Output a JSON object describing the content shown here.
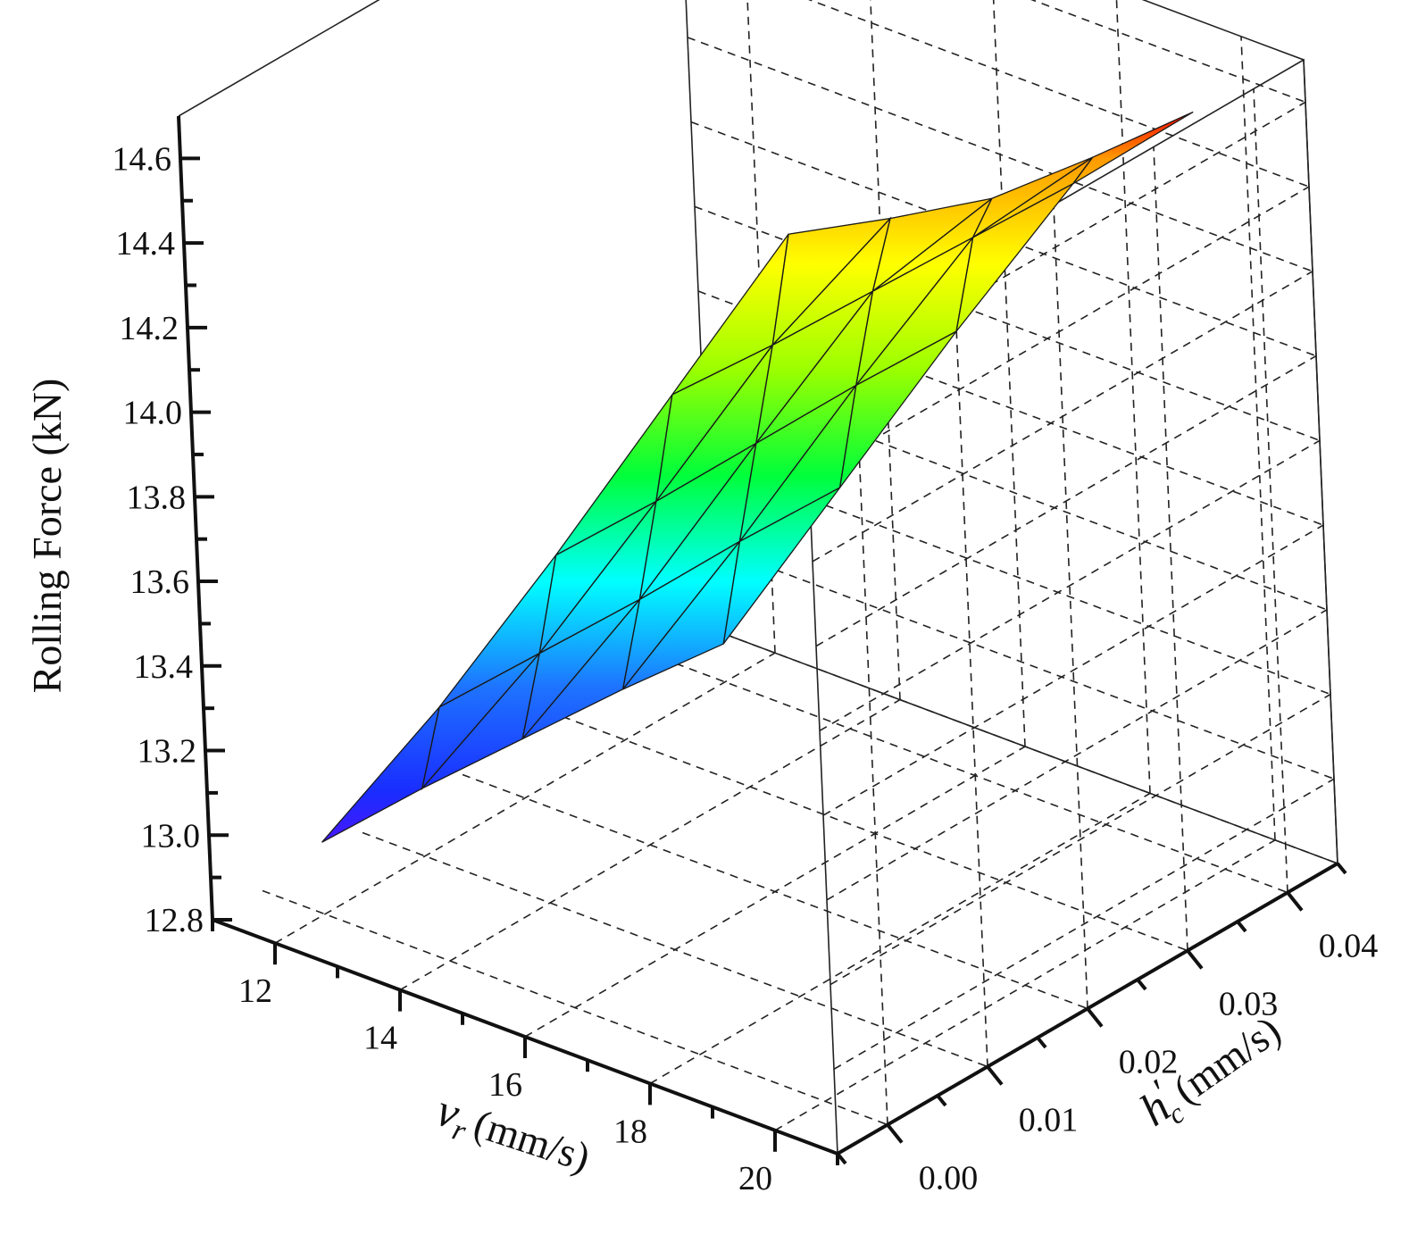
{
  "chart_data": {
    "type": "surface3d",
    "zlabel": "Rolling Force (kN)",
    "xlabel": "v_r (mm/s)",
    "ylabel": "h'_c (mm/s)",
    "xlabel_parts": {
      "symbol": "v",
      "subscript": "r",
      "unit": "(mm/s)"
    },
    "ylabel_parts": {
      "symbol": "h",
      "prime": "′",
      "subscript": "c",
      "unit": "(mm/s)"
    },
    "x_ticks": [
      "12",
      "14",
      "16",
      "18",
      "20"
    ],
    "y_ticks": [
      "0.00",
      "0.01",
      "0.02",
      "0.03",
      "0.04"
    ],
    "z_ticks": [
      "12.8",
      "13.0",
      "13.2",
      "13.4",
      "13.6",
      "13.8",
      "14.0",
      "14.2",
      "14.4",
      "14.6"
    ],
    "xlim": [
      11,
      21
    ],
    "ylim": [
      -0.005,
      0.045
    ],
    "zlim": [
      12.8,
      14.7
    ],
    "x": [
      12,
      14,
      16,
      18,
      20
    ],
    "y": [
      0.0,
      0.01,
      0.02,
      0.03,
      0.04
    ],
    "z": [
      [
        12.97,
        13.4,
        13.87,
        14.36,
        14.85
      ],
      [
        12.96,
        13.39,
        13.86,
        14.34,
        14.75
      ],
      [
        12.94,
        13.38,
        13.86,
        14.33,
        14.66
      ],
      [
        12.92,
        13.38,
        13.86,
        14.32,
        14.62
      ],
      [
        12.89,
        13.37,
        13.85,
        14.31,
        14.59
      ]
    ],
    "colormap": [
      "#7b00ff",
      "#1a2cff",
      "#1e73ff",
      "#00ffff",
      "#00ff3a",
      "#9bff00",
      "#ffff00",
      "#ff9a00",
      "#ff1000"
    ],
    "grid": true
  }
}
